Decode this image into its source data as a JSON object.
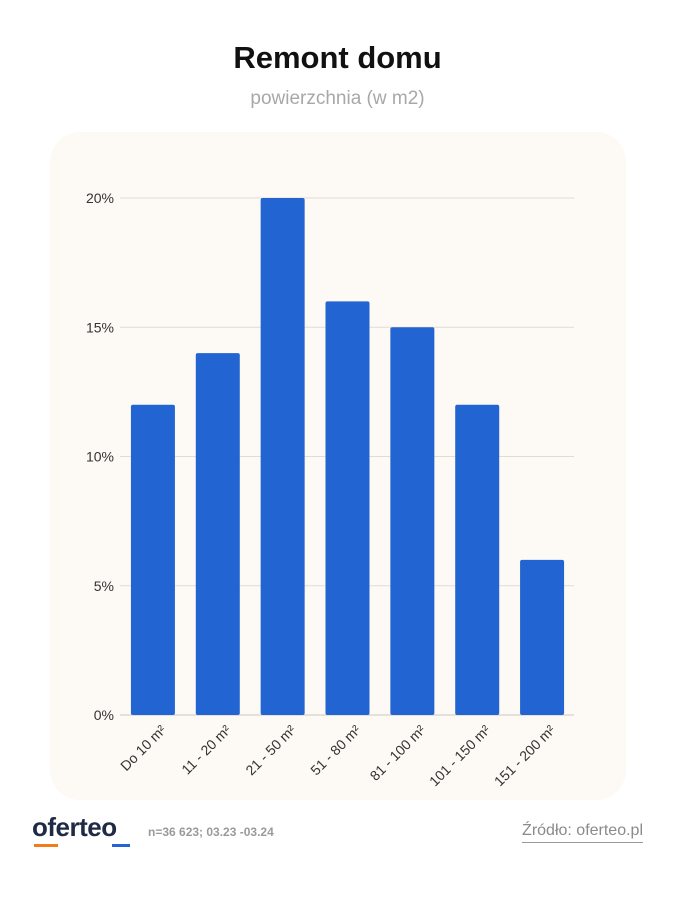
{
  "header": {
    "title": "Remont domu",
    "subtitle": "powierzchnia (w m2)"
  },
  "chart_data": {
    "type": "bar",
    "categories": [
      "Do 10 m²",
      "11 - 20 m²",
      "21 - 50 m²",
      "51 - 80 m²",
      "81 - 100 m²",
      "101 - 150 m²",
      "151 - 200 m²"
    ],
    "values": [
      12,
      14,
      20,
      16,
      15,
      12,
      6
    ],
    "y_ticks": [
      "0%",
      "5%",
      "10%",
      "15%",
      "20%"
    ],
    "y_tick_values": [
      0,
      5,
      10,
      15,
      20
    ],
    "ylim": [
      0,
      20
    ],
    "grid": true,
    "bar_color": "#2264d1"
  },
  "footer": {
    "logo": "oferteo",
    "sample": "n=36 623; 03.23 -03.24",
    "source": "Źródło: oferteo.pl"
  },
  "colors": {
    "card_background": "#fdf9f5",
    "grid": "#e2dcd6",
    "logo_accent_orange": "#f07c1a",
    "logo_accent_blue": "#2563d6"
  }
}
